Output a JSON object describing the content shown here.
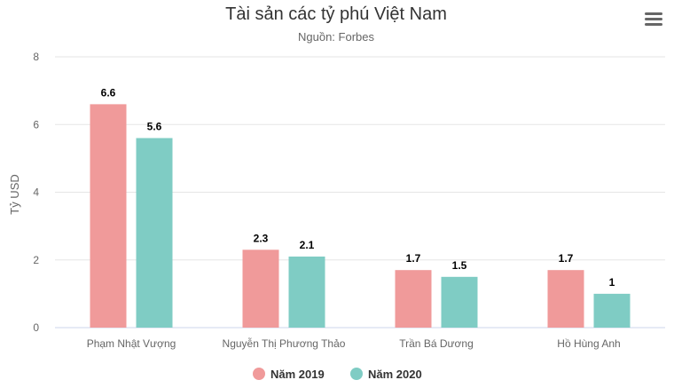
{
  "menu_icon": "hamburger-menu-icon",
  "chart_data": {
    "type": "bar",
    "title": "Tài sản các tỷ phú Việt Nam",
    "subtitle": "Nguồn: Forbes",
    "xlabel": "",
    "ylabel": "Tỷ USD",
    "ylim": [
      0,
      8
    ],
    "yticks": [
      "0",
      "2",
      "4",
      "6",
      "8"
    ],
    "grid": true,
    "legend_position": "bottom",
    "categories": [
      "Phạm Nhật Vượng",
      "Nguyễn Thị Phương Thảo",
      "Trần Bá Dương",
      "Hồ Hùng Anh"
    ],
    "series": [
      {
        "name": "Năm 2019",
        "color": "#f09a9a",
        "values": [
          6.6,
          2.3,
          1.7,
          1.7
        ],
        "labels": [
          "6.6",
          "2.3",
          "1.7",
          "1.7"
        ]
      },
      {
        "name": "Năm 2020",
        "color": "#7fccc4",
        "values": [
          5.6,
          2.1,
          1.5,
          1
        ],
        "labels": [
          "5.6",
          "2.1",
          "1.5",
          "1"
        ]
      }
    ]
  }
}
